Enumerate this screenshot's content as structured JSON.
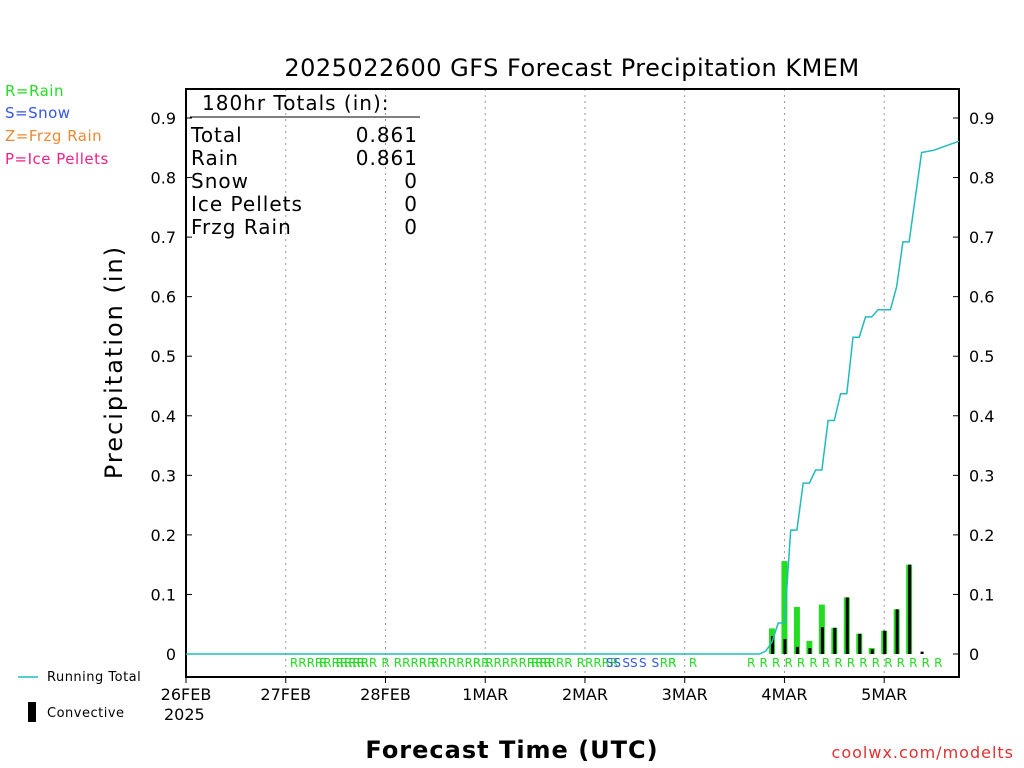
{
  "chart_data": {
    "type": "bar",
    "title": "2025022600 GFS Forecast Precipitation KMEM",
    "xlabel": "Forecast Time (UTC)",
    "ylabel": "Precipitation (in)",
    "ylim": [
      0,
      0.95
    ],
    "yticks": [
      0,
      0.1,
      0.2,
      0.3,
      0.4,
      0.5,
      0.6,
      0.7,
      0.8,
      0.9
    ],
    "ytick_labels": [
      "0",
      "0.1",
      "0.2",
      "0.3",
      "0.4",
      "0.5",
      "0.6",
      "0.7",
      "0.8",
      "0.9"
    ],
    "xlim_hours": [
      0,
      186
    ],
    "xticks": [
      {
        "hour": 0,
        "label": "26FEB",
        "sublabel": "2025"
      },
      {
        "hour": 24,
        "label": "27FEB",
        "sublabel": ""
      },
      {
        "hour": 48,
        "label": "28FEB",
        "sublabel": ""
      },
      {
        "hour": 72,
        "label": "1MAR",
        "sublabel": ""
      },
      {
        "hour": 96,
        "label": "2MAR",
        "sublabel": ""
      },
      {
        "hour": 120,
        "label": "3MAR",
        "sublabel": ""
      },
      {
        "hour": 144,
        "label": "4MAR",
        "sublabel": ""
      },
      {
        "hour": 168,
        "label": "5MAR",
        "sublabel": ""
      }
    ],
    "grid": "vertical dotted at day boundaries",
    "series": [
      {
        "name": "Rain",
        "color": "#22dd22",
        "kind": "bar",
        "hours": [
          141,
          144,
          147,
          150,
          153,
          156,
          159,
          162,
          165,
          168,
          171,
          174
        ],
        "values": [
          0.043,
          0.156,
          0.079,
          0.022,
          0.083,
          0.044,
          0.095,
          0.034,
          0.01,
          0.039,
          0.075,
          0.15
        ]
      },
      {
        "name": "Convective",
        "color": "#000000",
        "kind": "bar",
        "hours": [
          141,
          144,
          147,
          150,
          153,
          156,
          159,
          162,
          165,
          168,
          171,
          174,
          177
        ],
        "values": [
          0.03,
          0.025,
          0.012,
          0.01,
          0.045,
          0.044,
          0.095,
          0.034,
          0.008,
          0.039,
          0.075,
          0.15,
          0.004
        ]
      },
      {
        "name": "Running Total",
        "color": "#22bbbb",
        "kind": "step",
        "hours": [
          0,
          138,
          139.5,
          141,
          142.5,
          144,
          145.5,
          147,
          148.5,
          150,
          151.5,
          153,
          154.5,
          156,
          157.5,
          159,
          160.5,
          162,
          163.5,
          165,
          166.5,
          168,
          169.5,
          171,
          172.5,
          174,
          177,
          180,
          186
        ],
        "values": [
          0,
          0,
          0.005,
          0.02,
          0.052,
          0.052,
          0.208,
          0.208,
          0.287,
          0.287,
          0.309,
          0.309,
          0.392,
          0.392,
          0.437,
          0.437,
          0.532,
          0.532,
          0.566,
          0.566,
          0.578,
          0.578,
          0.578,
          0.617,
          0.692,
          0.692,
          0.842,
          0.846,
          0.861
        ]
      }
    ],
    "type_markers": [
      {
        "hour": 25,
        "text": "RRRRRRRRR",
        "kind": "R"
      },
      {
        "hour": 32,
        "text": "R",
        "kind": "R"
      },
      {
        "hour": 36,
        "text": "RRRR",
        "kind": "R"
      },
      {
        "hour": 42,
        "text": "RR",
        "kind": "R"
      },
      {
        "hour": 47,
        "text": "R",
        "kind": "R"
      },
      {
        "hour": 50,
        "text": "RRRRR",
        "kind": "R"
      },
      {
        "hour": 56,
        "text": "R",
        "kind": "R"
      },
      {
        "hour": 59,
        "text": "RRRRRR",
        "kind": "R"
      },
      {
        "hour": 69,
        "text": "RR",
        "kind": "R"
      },
      {
        "hour": 72,
        "text": "RR",
        "kind": "R"
      },
      {
        "hour": 76,
        "text": "RRRRRR",
        "kind": "R"
      },
      {
        "hour": 83,
        "text": "RRRRR",
        "kind": "R"
      },
      {
        "hour": 94,
        "text": "RRRRR",
        "kind": "R"
      },
      {
        "hour": 101,
        "text": "SS",
        "kind": "S"
      },
      {
        "hour": 105,
        "text": "SS",
        "kind": "S"
      },
      {
        "hour": 109,
        "text": "S",
        "kind": "S"
      },
      {
        "hour": 112,
        "text": "S",
        "kind": "S"
      },
      {
        "hour": 114,
        "text": "RR",
        "kind": "R"
      },
      {
        "hour": 116,
        "text": "R",
        "kind": "R"
      },
      {
        "hour": 121,
        "text": "R",
        "kind": "R"
      },
      {
        "hour": 135,
        "text": "R",
        "kind": "R"
      },
      {
        "hour": 138,
        "text": "R",
        "kind": "R"
      },
      {
        "hour": 141,
        "text": "R",
        "kind": "R"
      },
      {
        "hour": 144,
        "text": "R",
        "kind": "R"
      },
      {
        "hour": 147,
        "text": "R",
        "kind": "R"
      },
      {
        "hour": 150,
        "text": "R",
        "kind": "R"
      },
      {
        "hour": 153,
        "text": "R",
        "kind": "R"
      },
      {
        "hour": 156,
        "text": "R",
        "kind": "R"
      },
      {
        "hour": 159,
        "text": "R",
        "kind": "R"
      },
      {
        "hour": 162,
        "text": "R",
        "kind": "R"
      },
      {
        "hour": 165,
        "text": "R",
        "kind": "R"
      },
      {
        "hour": 168,
        "text": "R",
        "kind": "R"
      },
      {
        "hour": 171,
        "text": "R",
        "kind": "R"
      },
      {
        "hour": 174,
        "text": "R",
        "kind": "R"
      },
      {
        "hour": 177,
        "text": "R",
        "kind": "R"
      },
      {
        "hour": 180,
        "text": "R",
        "kind": "R"
      }
    ]
  },
  "totals_box": {
    "heading": "180hr Totals (in):",
    "rows": [
      {
        "label": "Total",
        "value": "0.861"
      },
      {
        "label": "Rain",
        "value": "0.861"
      },
      {
        "label": "Snow",
        "value": "0"
      },
      {
        "label": "Ice Pellets",
        "value": "0"
      },
      {
        "label": "Frzg Rain",
        "value": "0"
      }
    ]
  },
  "type_legend": [
    {
      "text": "R=Rain",
      "color": "#22dd22"
    },
    {
      "text": "S=Snow",
      "color": "#3355ee"
    },
    {
      "text": "Z=Frzg Rain",
      "color": "#ee8833"
    },
    {
      "text": "P=Ice Pellets",
      "color": "#ee2288"
    }
  ],
  "bottom_legend": {
    "running_total": "Running Total",
    "convective": "Convective"
  },
  "credit": "coolwx.com/modelts",
  "colors": {
    "rain": "#22dd22",
    "snow": "#3355ee",
    "running_total": "#22bbbb",
    "credit": "#e03030"
  }
}
